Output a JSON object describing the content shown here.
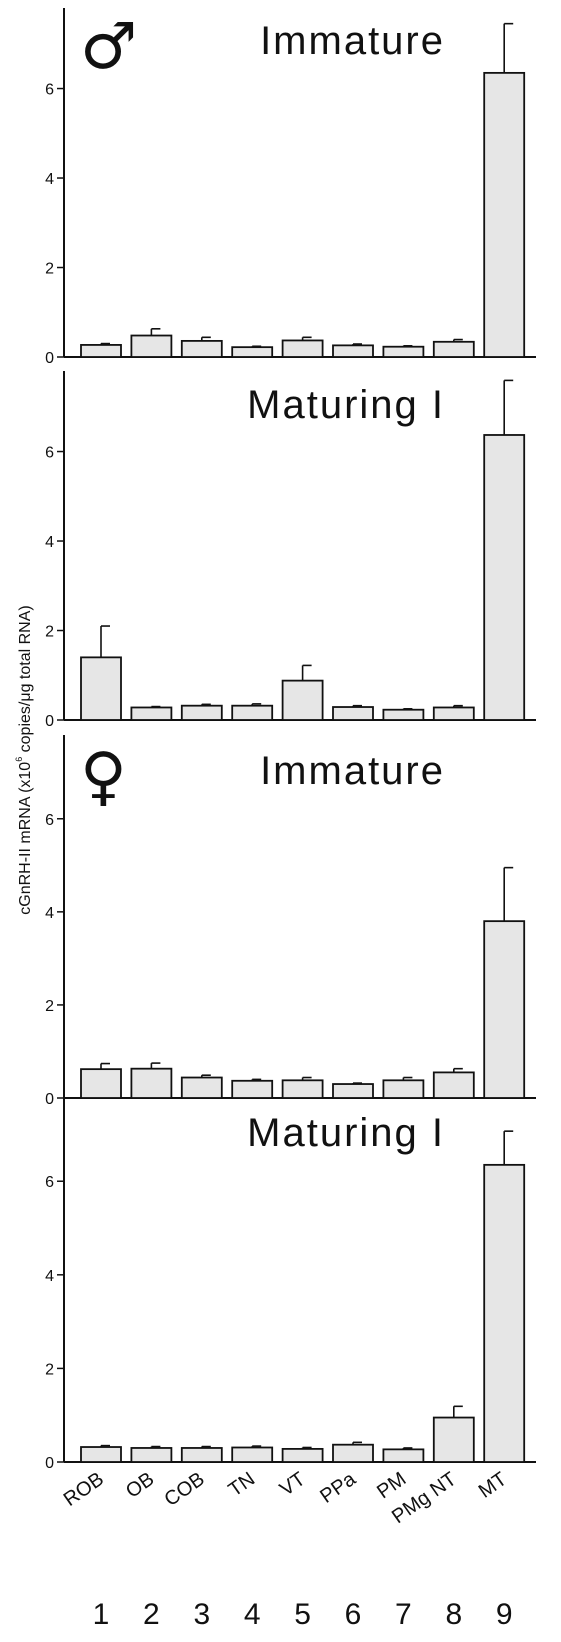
{
  "chart_data": {
    "type": "bar",
    "ylabel": "cGnRH-II mRNA  (x10",
    "ylabel_sup": "6",
    "ylabel_rest": " copies/μg  total  RNA)",
    "categories": [
      "ROB",
      "OB",
      "COB",
      "TN",
      "VT",
      "PPa",
      "PM",
      "PMg NT",
      "MT"
    ],
    "category_numbers": [
      "1",
      "2",
      "3",
      "4",
      "5",
      "6",
      "7",
      "8",
      "9"
    ],
    "yticks": [
      0,
      2,
      4,
      6
    ],
    "ylim": [
      0,
      7.8
    ],
    "bar_color": "#e6e6e6",
    "panels": [
      {
        "symbol": "♂",
        "title": "Immature",
        "values": [
          0.27,
          0.48,
          0.36,
          0.22,
          0.37,
          0.26,
          0.23,
          0.34,
          6.35
        ],
        "errors": [
          0.03,
          0.15,
          0.08,
          0.02,
          0.07,
          0.03,
          0.02,
          0.05,
          1.1
        ]
      },
      {
        "symbol": "",
        "title": "Maturing I",
        "values": [
          1.4,
          0.28,
          0.32,
          0.32,
          0.88,
          0.29,
          0.23,
          0.28,
          6.37
        ],
        "errors": [
          0.7,
          0.02,
          0.03,
          0.04,
          0.34,
          0.03,
          0.02,
          0.04,
          1.22
        ]
      },
      {
        "symbol": "♀",
        "title": "Immature",
        "values": [
          0.62,
          0.63,
          0.44,
          0.37,
          0.38,
          0.3,
          0.38,
          0.55,
          3.8
        ],
        "errors": [
          0.12,
          0.12,
          0.05,
          0.03,
          0.06,
          0.02,
          0.06,
          0.08,
          1.15
        ]
      },
      {
        "symbol": "",
        "title": "Maturing I",
        "values": [
          0.32,
          0.3,
          0.3,
          0.31,
          0.28,
          0.37,
          0.27,
          0.95,
          6.35
        ],
        "errors": [
          0.03,
          0.03,
          0.03,
          0.03,
          0.03,
          0.05,
          0.03,
          0.24,
          0.72
        ]
      }
    ]
  }
}
